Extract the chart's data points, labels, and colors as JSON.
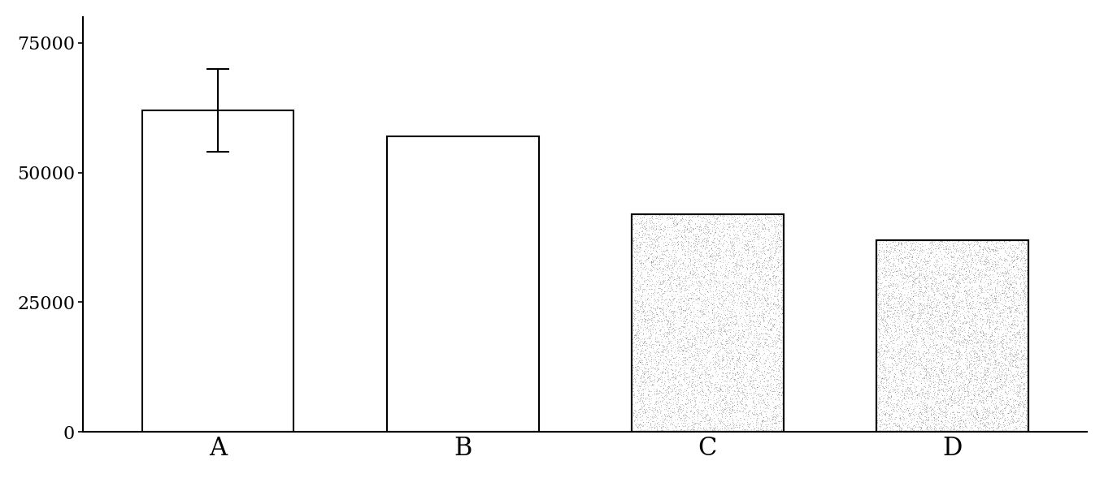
{
  "categories": [
    "A",
    "B",
    "C",
    "D"
  ],
  "values": [
    62000,
    57000,
    42000,
    37000
  ],
  "error_bars": [
    8000,
    0,
    0,
    0
  ],
  "bar_colors_white": [
    "white",
    "white"
  ],
  "bar_colors_stipple": [
    "white",
    "white"
  ],
  "bar_edgecolor": "black",
  "ylim": [
    0,
    80000
  ],
  "yticks": [
    0,
    25000,
    50000,
    75000
  ],
  "ytick_labels": [
    "0",
    "25000",
    "50000",
    "75000"
  ],
  "bar_width": 0.62,
  "background_color": "white",
  "figure_width": 13.58,
  "figure_height": 5.89,
  "dpi": 100,
  "xlim": [
    -0.55,
    3.55
  ],
  "stipple_density": 8000,
  "stipple_size": 0.5,
  "stipple_color": "#444444"
}
